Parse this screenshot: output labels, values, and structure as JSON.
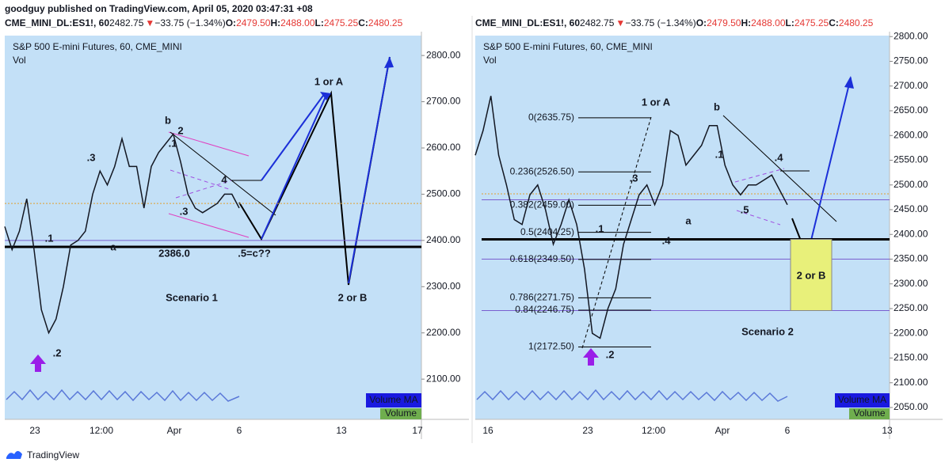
{
  "header": {
    "publisher": "goodguy published on TradingView.com, April 05, 2020 03:47:31 +08"
  },
  "chart_data": [
    {
      "type": "line",
      "title": "S&P 500 E-mini Futures, 60, CME_MINI",
      "subtitle": "Vol",
      "quote": {
        "symbol": "CME_MINI_DL:ES1!, 60",
        "last": "2482.75",
        "change": "−33.75 (−1.34%)",
        "ohlc_labels": [
          "O:",
          "H:",
          "L:",
          "C:"
        ],
        "ohlc_values": [
          "2479.50",
          "2488.00",
          "2475.25",
          "2480.25"
        ]
      },
      "color": "#131722",
      "values": [
        2430,
        2380,
        2420,
        2490,
        2380,
        2250,
        2200,
        2230,
        2300,
        2390,
        2400,
        2420,
        2500,
        2550,
        2520,
        2560,
        2620,
        2560,
        2560,
        2470,
        2560,
        2590,
        2610,
        2630,
        2570,
        2500,
        2470,
        2460,
        2470,
        2480,
        2500,
        2500,
        2470
      ],
      "ylim": [
        2013,
        2843
      ],
      "yticks": [
        {
          "value": 2100,
          "label": "2100.00"
        },
        {
          "value": 2200,
          "label": "2200.00"
        },
        {
          "value": 2300,
          "label": "2300.00"
        },
        {
          "value": 2400,
          "label": "2400.00"
        },
        {
          "value": 2500,
          "label": "2500.00"
        },
        {
          "value": 2600,
          "label": "2600.00"
        },
        {
          "value": 2700,
          "label": "2700.00"
        },
        {
          "value": 2800,
          "label": "2800.00"
        }
      ],
      "x_tick_labels": [
        "23",
        "12:00",
        "Apr",
        "6",
        "13",
        "17"
      ],
      "hlines": [
        {
          "value": 2386,
          "color": "#000000",
          "width": 3
        },
        {
          "value": 2400,
          "color": "#7a5fd0",
          "width": 1
        },
        {
          "value": 2480,
          "color": "#e0a030",
          "width": 1,
          "dashed": true
        }
      ],
      "annotations": [
        "1 or A",
        "2 or B",
        "Scenario  1",
        ".1",
        ".2",
        ".3",
        "b",
        "2",
        ".1",
        "4",
        ".3",
        "a",
        "2386.0",
        ".5=c??"
      ],
      "legend": [
        "Volume MA",
        "Volume"
      ]
    },
    {
      "type": "line",
      "title": "S&P 500 E-mini Futures, 60, CME_MINI",
      "subtitle": "Vol",
      "quote": {
        "symbol": "CME_MINI_DL:ES1!, 60",
        "last": "2482.75",
        "change": "−33.75 (−1.34%)",
        "ohlc_labels": [
          "O:",
          "H:",
          "L:",
          "C:"
        ],
        "ohlc_values": [
          "2479.50",
          "2488.00",
          "2475.25",
          "2480.25"
        ]
      },
      "color": "#131722",
      "values": [
        2560,
        2610,
        2680,
        2560,
        2500,
        2430,
        2420,
        2480,
        2500,
        2450,
        2380,
        2420,
        2470,
        2420,
        2330,
        2200,
        2190,
        2250,
        2290,
        2380,
        2430,
        2480,
        2500,
        2460,
        2500,
        2610,
        2600,
        2540,
        2560,
        2580,
        2620,
        2620,
        2540,
        2500,
        2480,
        2500,
        2500,
        2510,
        2520,
        2490,
        2460
      ],
      "ylim": [
        2026,
        2802
      ],
      "yticks": [
        {
          "value": 2050,
          "label": "2050.00"
        },
        {
          "value": 2100,
          "label": "2100.00"
        },
        {
          "value": 2150,
          "label": "2150.00"
        },
        {
          "value": 2200,
          "label": "2200.00"
        },
        {
          "value": 2250,
          "label": "2250.00"
        },
        {
          "value": 2300,
          "label": "2300.00"
        },
        {
          "value": 2350,
          "label": "2350.00"
        },
        {
          "value": 2400,
          "label": "2400.00"
        },
        {
          "value": 2450,
          "label": "2450.00"
        },
        {
          "value": 2500,
          "label": "2500.00"
        },
        {
          "value": 2550,
          "label": "2550.00"
        },
        {
          "value": 2600,
          "label": "2600.00"
        },
        {
          "value": 2650,
          "label": "2650.00"
        },
        {
          "value": 2700,
          "label": "2700.00"
        },
        {
          "value": 2750,
          "label": "2750.00"
        },
        {
          "value": 2800,
          "label": "2800.00"
        }
      ],
      "x_tick_labels": [
        "16",
        "23",
        "12:00",
        "Apr",
        "6",
        "13"
      ],
      "hlines": [
        {
          "value": 2390,
          "color": "#000000",
          "width": 3
        },
        {
          "value": 2470,
          "color": "#7a5fd0",
          "width": 1
        },
        {
          "value": 2350,
          "color": "#7a5fd0",
          "width": 1
        },
        {
          "value": 2246,
          "color": "#7a5fd0",
          "width": 1
        },
        {
          "value": 2482,
          "color": "#e0a030",
          "width": 1,
          "dashed": true
        }
      ],
      "fib_levels": [
        {
          "value": 2635.75,
          "label": "0(2635.75)"
        },
        {
          "value": 2526.5,
          "label": "0.236(2526.50)"
        },
        {
          "value": 2459,
          "label": "0.382(2459.00)"
        },
        {
          "value": 2404.25,
          "label": "0.5(2404.25)"
        },
        {
          "value": 2349.5,
          "label": "0.618(2349.50)"
        },
        {
          "value": 2271.75,
          "label": "0.786(2271.75)"
        },
        {
          "value": 2246.75,
          "label": "0.84(2246.75)"
        },
        {
          "value": 2172.5,
          "label": "1(2172.50)"
        }
      ],
      "annotations": [
        "1  or A",
        "b",
        ".1",
        ".4",
        ".3",
        "a",
        ".5",
        ".1",
        ".4",
        ".2",
        "2 or B",
        "Scenario 2"
      ],
      "legend": [
        "Volume MA",
        "Volume"
      ]
    }
  ],
  "footer": {
    "brand": "TradingView"
  }
}
